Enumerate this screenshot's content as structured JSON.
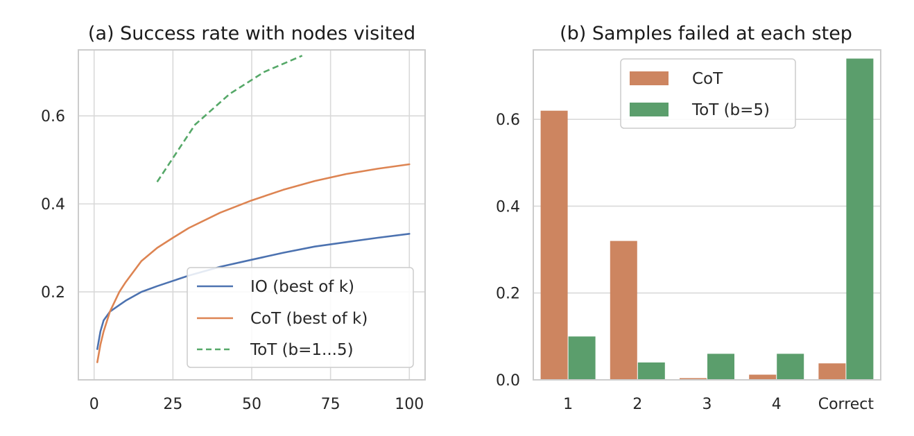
{
  "colors": {
    "io": "#4c72b0",
    "cot": "#dd8452",
    "cot_bar": "#cd8560",
    "tot": "#55a868",
    "tot_bar": "#5b9e6c"
  },
  "chart_data": [
    {
      "type": "line",
      "title": "(a) Success rate with nodes visited",
      "xlabel": "",
      "ylabel": "",
      "xlim": [
        -5,
        105
      ],
      "ylim": [
        0.0,
        0.75
      ],
      "xticks": [
        0,
        25,
        50,
        75,
        100
      ],
      "xtick_labels": [
        "0",
        "25",
        "50",
        "75",
        "100"
      ],
      "yticks": [
        0.2,
        0.4,
        0.6
      ],
      "ytick_labels": [
        "0.2",
        "0.4",
        "0.6"
      ],
      "grid": true,
      "legend_position": "lower-right",
      "series": [
        {
          "name": "IO (best of k)",
          "color": "io",
          "style": "solid",
          "x": [
            1,
            2,
            3,
            5,
            8,
            10,
            15,
            20,
            25,
            30,
            40,
            50,
            60,
            70,
            80,
            90,
            100
          ],
          "y": [
            0.07,
            0.11,
            0.135,
            0.155,
            0.17,
            0.18,
            0.2,
            0.213,
            0.225,
            0.237,
            0.257,
            0.273,
            0.289,
            0.303,
            0.313,
            0.323,
            0.332
          ]
        },
        {
          "name": "CoT (best of k)",
          "color": "cot",
          "style": "solid",
          "x": [
            1,
            2,
            3,
            5,
            8,
            10,
            15,
            20,
            25,
            30,
            40,
            50,
            60,
            70,
            80,
            90,
            100
          ],
          "y": [
            0.04,
            0.08,
            0.11,
            0.155,
            0.2,
            0.222,
            0.27,
            0.3,
            0.323,
            0.345,
            0.38,
            0.408,
            0.432,
            0.452,
            0.468,
            0.48,
            0.49
          ]
        },
        {
          "name": "ToT (b=1...5)",
          "color": "tot",
          "style": "dashed",
          "x": [
            20,
            32,
            43,
            54,
            66
          ],
          "y": [
            0.45,
            0.58,
            0.65,
            0.7,
            0.737
          ]
        }
      ]
    },
    {
      "type": "bar",
      "title": "(b) Samples failed at each step",
      "xlabel": "",
      "ylabel": "",
      "ylim": [
        0.0,
        0.76
      ],
      "yticks": [
        0.0,
        0.2,
        0.4,
        0.6
      ],
      "ytick_labels": [
        "0.0",
        "0.2",
        "0.4",
        "0.6"
      ],
      "grid": true,
      "legend_position": "upper-center",
      "categories": [
        "1",
        "2",
        "3",
        "4",
        "Correct"
      ],
      "series": [
        {
          "name": "CoT",
          "color": "cot_bar",
          "values": [
            0.62,
            0.32,
            0.004,
            0.012,
            0.038
          ]
        },
        {
          "name": "ToT (b=5)",
          "color": "tot_bar",
          "values": [
            0.1,
            0.04,
            0.06,
            0.06,
            0.74
          ]
        }
      ]
    }
  ]
}
